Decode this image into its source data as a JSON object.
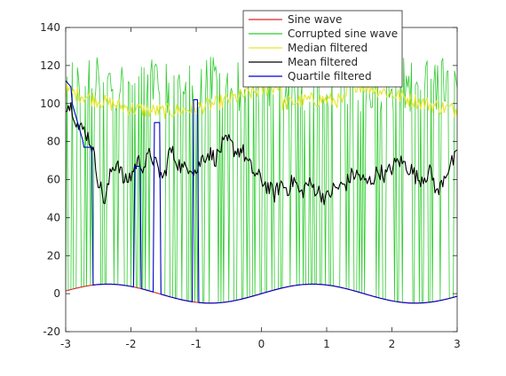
{
  "chart_data": {
    "type": "line",
    "title": "",
    "xlabel": "",
    "ylabel": "",
    "xlim": [
      -3,
      3
    ],
    "ylim": [
      -20,
      140
    ],
    "xticks": [
      -3,
      -2,
      -1,
      0,
      1,
      2,
      3
    ],
    "xtick_labels": [
      "-3",
      "-2",
      "-1",
      "0",
      "1",
      "2",
      "3"
    ],
    "yticks": [
      -20,
      0,
      20,
      40,
      60,
      80,
      100,
      120,
      140
    ],
    "ytick_labels": [
      "-20",
      "0",
      "20",
      "40",
      "60",
      "80",
      "100",
      "120",
      "140"
    ],
    "grid": false,
    "legend_position": "top-right",
    "sampling": {
      "x_start": -3,
      "x_end": 3,
      "points": 301
    },
    "series": [
      {
        "name": "Sine wave",
        "color": "#d62728",
        "description": "y = 5*sin(2x); a clean sine wave oscillating between -5 and 5"
      },
      {
        "name": "Corrupted sine wave",
        "color": "#2ecc2e",
        "description": "sine wave with heavy salt noise: roughly 60% of samples replaced by values around 95-125"
      },
      {
        "name": "Median filtered",
        "color": "#e6e62e",
        "description": "median filter output, mostly 95-120, dipping toward ~90 near x=0.5 to 1"
      },
      {
        "name": "Mean filtered",
        "color": "#000000",
        "description": "mean filter output: ~100 at x=-3, ~85 at x=-2.6, then fluctuating around 55-75 (approx 45-85)"
      },
      {
        "name": "Quartile filtered",
        "color": "#0000cc",
        "description": "quartile filter output: ~115 at x=-3 dropping to ~77 by x=-2.7, then following the sine wave with spikes near x=-1.9, -1.6, -1.0"
      }
    ],
    "key_points": {
      "mean_filtered": [
        [
          -3.0,
          100
        ],
        [
          -2.9,
          98
        ],
        [
          -2.8,
          87
        ],
        [
          -2.7,
          86
        ],
        [
          -2.6,
          78
        ],
        [
          -2.5,
          60
        ],
        [
          -2.4,
          48
        ],
        [
          -2.3,
          65
        ],
        [
          -2.2,
          70
        ],
        [
          -2.1,
          58
        ],
        [
          -2.0,
          62
        ],
        [
          -1.9,
          70
        ],
        [
          -1.8,
          67
        ],
        [
          -1.7,
          74
        ],
        [
          -1.6,
          66
        ],
        [
          -1.5,
          60
        ],
        [
          -1.4,
          76
        ],
        [
          -1.3,
          70
        ],
        [
          -1.2,
          65
        ],
        [
          -1.1,
          68
        ],
        [
          -1.0,
          64
        ],
        [
          -0.9,
          72
        ],
        [
          -0.8,
          74
        ],
        [
          -0.7,
          71
        ],
        [
          -0.6,
          78
        ],
        [
          -0.5,
          80
        ],
        [
          -0.4,
          75
        ],
        [
          -0.3,
          76
        ],
        [
          -0.2,
          68
        ],
        [
          -0.1,
          63
        ],
        [
          0.0,
          60
        ],
        [
          0.1,
          56
        ],
        [
          0.2,
          52
        ],
        [
          0.3,
          58
        ],
        [
          0.4,
          55
        ],
        [
          0.5,
          60
        ],
        [
          0.6,
          52
        ],
        [
          0.7,
          58
        ],
        [
          0.8,
          56
        ],
        [
          0.9,
          53
        ],
        [
          1.0,
          50
        ],
        [
          1.1,
          55
        ],
        [
          1.2,
          56
        ],
        [
          1.3,
          58
        ],
        [
          1.4,
          63
        ],
        [
          1.5,
          62
        ],
        [
          1.6,
          58
        ],
        [
          1.7,
          60
        ],
        [
          1.8,
          65
        ],
        [
          1.9,
          62
        ],
        [
          2.0,
          66
        ],
        [
          2.1,
          70
        ],
        [
          2.2,
          68
        ],
        [
          2.3,
          65
        ],
        [
          2.4,
          60
        ],
        [
          2.5,
          62
        ],
        [
          2.6,
          64
        ],
        [
          2.7,
          52
        ],
        [
          2.8,
          62
        ],
        [
          2.9,
          68
        ],
        [
          3.0,
          72
        ]
      ]
    }
  }
}
